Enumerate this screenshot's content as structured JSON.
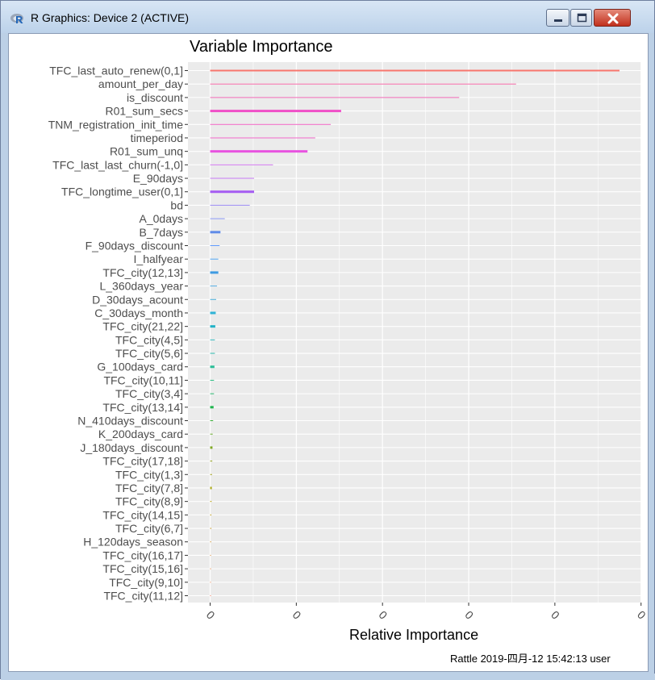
{
  "window": {
    "title": "R Graphics: Device 2 (ACTIVE)",
    "app_icon": "r-logo-icon",
    "controls": [
      "minimize-icon",
      "maximize-icon",
      "close-icon"
    ]
  },
  "chart_data": {
    "type": "bar",
    "orientation": "horizontal",
    "title": "Variable Importance",
    "xlabel": "Relative Importance",
    "ylabel": "",
    "caption": "Rattle 2019-四月-12 15:42:13 user",
    "x_tick_labels": [
      "0",
      "0",
      "0",
      "0",
      "0",
      "0"
    ],
    "xlim": [
      0,
      100
    ],
    "grid": true,
    "legend": "none",
    "colors": {
      "panel_background": "#ebebeb",
      "grid": "#ffffff",
      "axis_text": "#4d4d4d"
    },
    "categories": [
      "TFC_last_auto_renew(0,1]",
      "amount_per_day",
      "is_discount",
      "R01_sum_secs",
      "TNM_registration_init_time",
      "timeperiod",
      "R01_sum_unq",
      "TFC_last_last_churn(-1,0]",
      "E_90days",
      "TFC_longtime_user(0,1]",
      "bd",
      "A_0days",
      "B_7days",
      "F_90days_discount",
      "I_halfyear",
      "TFC_city(12,13]",
      "L_360days_year",
      "D_30days_acount",
      "C_30days_month",
      "TFC_city(21,22]",
      "TFC_city(4,5]",
      "TFC_city(5,6]",
      "G_100days_card",
      "TFC_city(10,11]",
      "TFC_city(3,4]",
      "TFC_city(13,14]",
      "N_410days_discount",
      "K_200days_card",
      "J_180days_discount",
      "TFC_city(17,18]",
      "TFC_city(1,3]",
      "TFC_city(7,8]",
      "TFC_city(8,9]",
      "TFC_city(14,15]",
      "TFC_city(6,7]",
      "H_120days_season",
      "TFC_city(16,17]",
      "TFC_city(15,16]",
      "TFC_city(9,10]",
      "TFC_city(11,12]"
    ],
    "values": [
      95.0,
      71.0,
      57.8,
      30.4,
      28.0,
      24.4,
      22.6,
      14.6,
      10.2,
      10.2,
      9.2,
      3.4,
      2.4,
      2.2,
      1.9,
      1.9,
      1.6,
      1.4,
      1.3,
      1.2,
      1.1,
      1.1,
      1.0,
      0.9,
      0.9,
      0.8,
      0.7,
      0.6,
      0.55,
      0.5,
      0.45,
      0.4,
      0.35,
      0.3,
      0.3,
      0.25,
      0.2,
      0.2,
      0.1,
      0.1
    ],
    "bar_colors": [
      "#f8766d",
      "#f568a7",
      "#f067b5",
      "#f050c8",
      "#f060c0",
      "#ef67c8",
      "#e852e0",
      "#d277ee",
      "#c57af2",
      "#a55cf2",
      "#9d8bf4",
      "#8a98f5",
      "#5f8be8",
      "#619cff",
      "#4fa3f0",
      "#3f9be2",
      "#55aee6",
      "#45acd8",
      "#2fb3d6",
      "#22b2c7",
      "#32b8bd",
      "#2fbbaf",
      "#2bbd97",
      "#28bd82",
      "#2bba70",
      "#21b54f",
      "#3cb33b",
      "#6aad2a",
      "#7fa824",
      "#94a41c",
      "#a3a21a",
      "#acaa1c",
      "#b79f0b",
      "#c09a10",
      "#c79520",
      "#cf8e2a",
      "#d8892f",
      "#e48234",
      "#ec7d44",
      "#f57a5a"
    ],
    "bar_thickness": [
      2,
      1,
      1,
      3,
      1,
      1,
      3,
      1,
      1,
      3,
      1,
      1,
      3,
      1,
      1,
      3,
      1,
      1,
      3,
      3,
      1,
      1,
      3,
      1,
      1,
      3,
      1,
      1,
      3,
      1,
      1,
      3,
      1,
      1,
      1,
      1,
      1,
      1,
      1,
      1
    ]
  }
}
